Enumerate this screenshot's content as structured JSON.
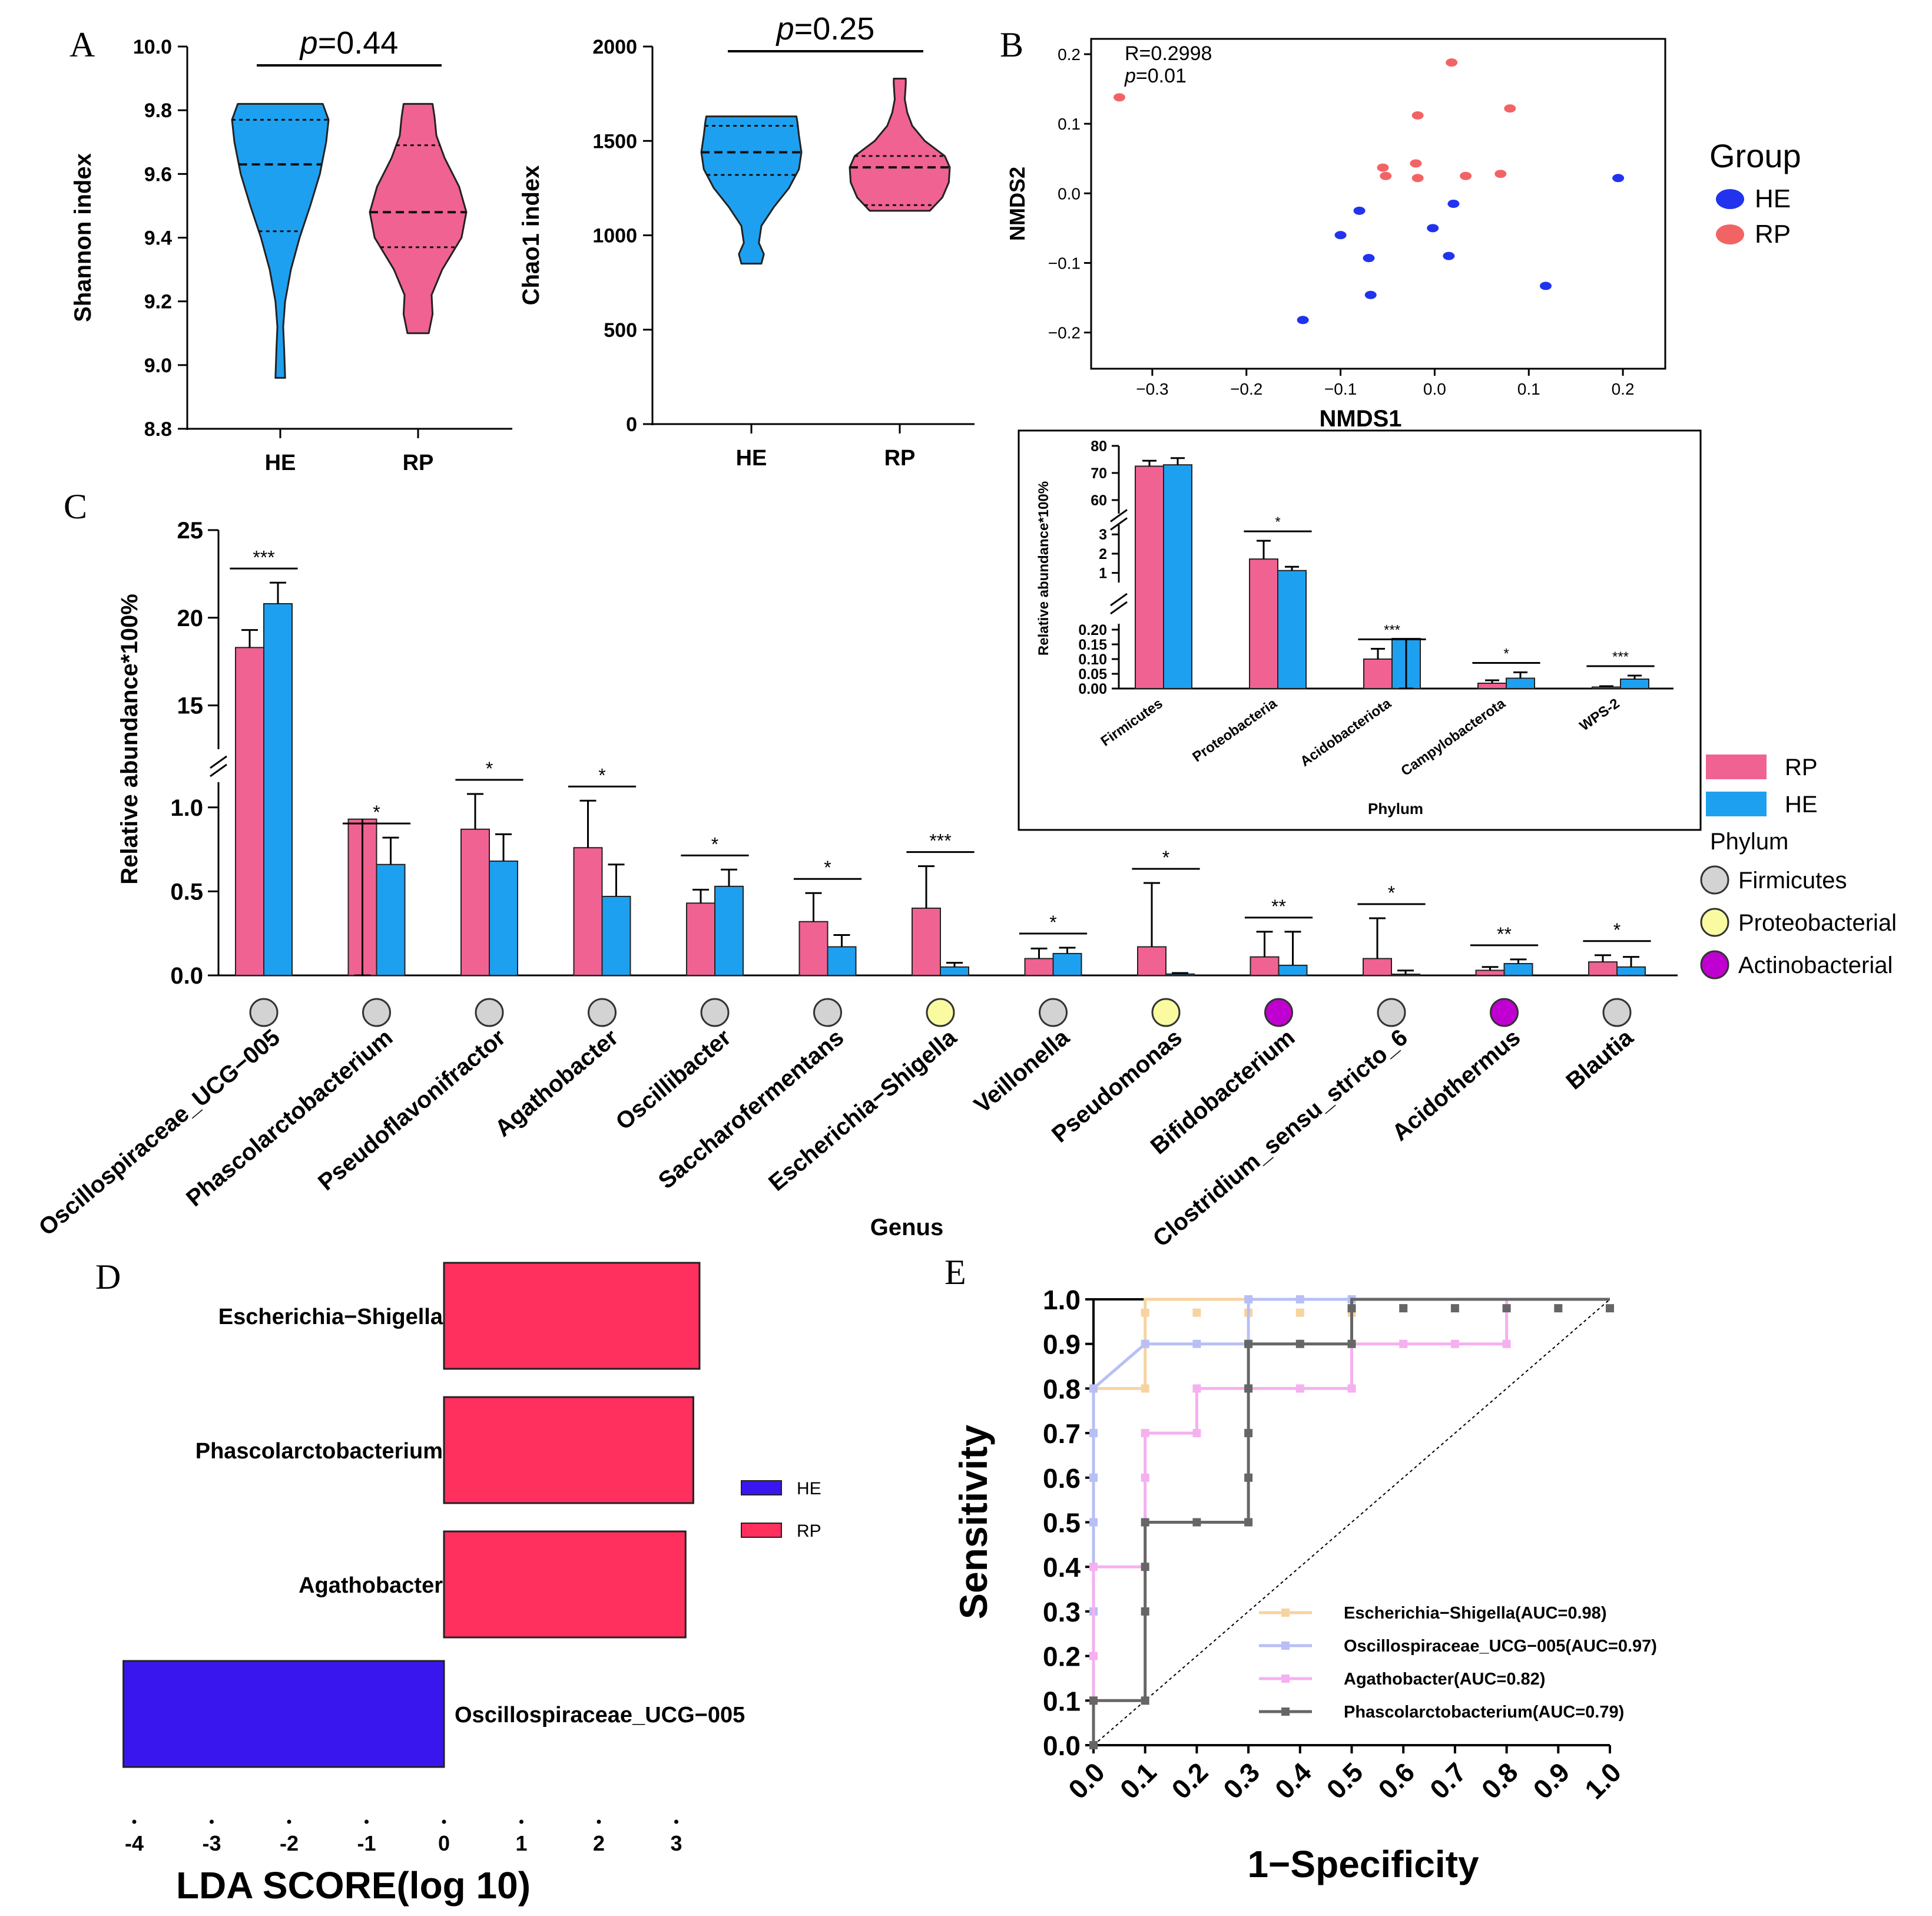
{
  "colors": {
    "rp": "#f06292",
    "he": "#1ea0f0",
    "rp_dot": "#f26464",
    "he_dot": "#2233ee",
    "lda_rp": "#ff2f5e",
    "lda_he": "#3a16ee",
    "firm": "#d3d3d3",
    "proteo": "#fafaa0",
    "actino": "#c000d0",
    "roc_esch": "#f7d3a0",
    "roc_osc": "#b8bff5",
    "roc_agath": "#f5b0f0",
    "roc_phasc": "#666666"
  },
  "panel_labels": {
    "a": "A",
    "b": "B",
    "c": "C",
    "d": "D",
    "e": "E"
  },
  "chart_data": [
    {
      "id": "A1",
      "type": "violin",
      "ylabel": "Shannon index",
      "ylim": [
        8.8,
        10.0
      ],
      "yticks": [
        "8.8",
        "9.0",
        "9.2",
        "9.4",
        "9.6",
        "9.8",
        "10.0"
      ],
      "categories": [
        "HE",
        "RP"
      ],
      "pvalue_p": "p",
      "pvalue_rest": "=0.44",
      "groups": [
        {
          "name": "HE",
          "min": 8.96,
          "max": 9.82,
          "q1": 9.42,
          "median": 9.63,
          "q3": 9.77,
          "profile": [
            [
              8.96,
              0.1
            ],
            [
              9.05,
              0.08
            ],
            [
              9.12,
              0.06
            ],
            [
              9.2,
              0.1
            ],
            [
              9.3,
              0.22
            ],
            [
              9.4,
              0.4
            ],
            [
              9.5,
              0.62
            ],
            [
              9.6,
              0.82
            ],
            [
              9.7,
              0.95
            ],
            [
              9.77,
              1.0
            ],
            [
              9.82,
              0.88
            ]
          ]
        },
        {
          "name": "RP",
          "min": 9.1,
          "max": 9.82,
          "q1": 9.37,
          "median": 9.48,
          "q3": 9.69,
          "profile": [
            [
              9.1,
              0.22
            ],
            [
              9.16,
              0.3
            ],
            [
              9.22,
              0.28
            ],
            [
              9.3,
              0.5
            ],
            [
              9.4,
              0.9
            ],
            [
              9.48,
              1.0
            ],
            [
              9.56,
              0.85
            ],
            [
              9.65,
              0.55
            ],
            [
              9.72,
              0.38
            ],
            [
              9.78,
              0.34
            ],
            [
              9.82,
              0.3
            ]
          ]
        }
      ]
    },
    {
      "id": "A2",
      "type": "violin",
      "ylabel": "Chao1 index",
      "ylim": [
        0,
        2000
      ],
      "yticks": [
        "0",
        "500",
        "1000",
        "1500",
        "2000"
      ],
      "categories": [
        "HE",
        "RP"
      ],
      "pvalue_p": "p",
      "pvalue_rest": "=0.25",
      "groups": [
        {
          "name": "HE",
          "min": 850,
          "max": 1630,
          "q1": 1320,
          "median": 1440,
          "q3": 1580,
          "profile": [
            [
              850,
              0.2
            ],
            [
              900,
              0.25
            ],
            [
              960,
              0.15
            ],
            [
              1050,
              0.2
            ],
            [
              1150,
              0.45
            ],
            [
              1250,
              0.75
            ],
            [
              1350,
              0.95
            ],
            [
              1440,
              1.0
            ],
            [
              1530,
              0.95
            ],
            [
              1600,
              0.92
            ],
            [
              1630,
              0.9
            ]
          ]
        },
        {
          "name": "RP",
          "min": 1130,
          "max": 1830,
          "q1": 1160,
          "median": 1360,
          "q3": 1420,
          "profile": [
            [
              1130,
              0.6
            ],
            [
              1200,
              0.85
            ],
            [
              1280,
              0.98
            ],
            [
              1360,
              1.0
            ],
            [
              1420,
              0.9
            ],
            [
              1500,
              0.5
            ],
            [
              1580,
              0.25
            ],
            [
              1650,
              0.15
            ],
            [
              1720,
              0.1
            ],
            [
              1800,
              0.12
            ],
            [
              1830,
              0.12
            ]
          ]
        }
      ]
    },
    {
      "id": "B",
      "type": "scatter",
      "xlabel": "NMDS1",
      "ylabel": "NMDS2",
      "xticks": [
        -0.3,
        -0.2,
        -0.1,
        0.0,
        0.1,
        0.2
      ],
      "xtick_labels": [
        "−0.3",
        "−0.2",
        "−0.1",
        "0.0",
        "0.1",
        "0.2"
      ],
      "yticks": [
        -0.2,
        -0.1,
        0.0,
        0.1,
        0.2
      ],
      "ytick_labels": [
        "−0.2",
        "−0.1",
        "0.0",
        "0.1",
        "0.2"
      ],
      "xlim": [
        -0.365,
        0.245
      ],
      "ylim": [
        -0.252,
        0.222
      ],
      "stat_r": "R=0.2998",
      "stat_p": "p",
      "stat_p_rest": "=0.01",
      "legend_title": "Group",
      "series": [
        {
          "name": "HE",
          "points": [
            [
              -0.14,
              -0.182
            ],
            [
              -0.1,
              -0.06
            ],
            [
              -0.08,
              -0.025
            ],
            [
              -0.07,
              -0.093
            ],
            [
              -0.068,
              -0.146
            ],
            [
              -0.002,
              -0.05
            ],
            [
              0.015,
              -0.09
            ],
            [
              0.02,
              -0.015
            ],
            [
              0.118,
              -0.133
            ],
            [
              0.195,
              0.022
            ]
          ]
        },
        {
          "name": "RP",
          "points": [
            [
              -0.335,
              0.138
            ],
            [
              -0.055,
              0.037
            ],
            [
              -0.052,
              0.025
            ],
            [
              -0.02,
              0.043
            ],
            [
              -0.018,
              0.022
            ],
            [
              -0.018,
              0.112
            ],
            [
              0.018,
              0.188
            ],
            [
              0.033,
              0.025
            ],
            [
              0.07,
              0.028
            ],
            [
              0.08,
              0.122
            ]
          ]
        }
      ]
    },
    {
      "id": "C-phylum",
      "type": "bar",
      "xlabel": "Phylum",
      "ylabel": "Relative abundance*100%",
      "categories": [
        "Firmicutes",
        "Proteobacteria",
        "Acidobacteriota",
        "Campylobacterota",
        "WPS-2"
      ],
      "segments": [
        {
          "range": [
            55,
            80
          ],
          "ticks": [
            "60",
            "70",
            "80"
          ]
        },
        {
          "range": [
            0.5,
            3.5
          ],
          "ticks": [
            "1",
            "2",
            "3"
          ]
        },
        {
          "range": [
            0,
            0.22
          ],
          "ticks": [
            "0.00",
            "0.05",
            "0.10",
            "0.15",
            "0.20"
          ]
        }
      ],
      "series": [
        {
          "name": "RP",
          "values": [
            72.5,
            1.72,
            0.1,
            0.018,
            0.005
          ],
          "errors": [
            2.0,
            0.95,
            0.035,
            0.01,
            0.003
          ]
        },
        {
          "name": "HE",
          "values": [
            73.0,
            1.12,
            0.17,
            0.035,
            0.032
          ],
          "errors": [
            2.5,
            0.2,
            0.05,
            0.02,
            0.012
          ]
        }
      ],
      "significance": [
        "",
        "*",
        "***",
        "*",
        "***"
      ]
    },
    {
      "id": "C-genus",
      "type": "bar",
      "xlabel": "Genus",
      "ylabel": "Relative abundance*100%",
      "categories": [
        "Oscillospiraceae_UCG−005",
        "Phascolarctobacterium",
        "Pseudoflavonifractor",
        "Agathobacter",
        "Oscillibacter",
        "Saccharofermentans",
        "Escherichia−Shigella",
        "Veillonella",
        "Pseudomonas",
        "Bifidobacterium",
        "Clostridium_sensu_stricto_6",
        "Acidothermus",
        "Blautia"
      ],
      "segments": [
        {
          "range": [
            12.5,
            25
          ],
          "ticks": [
            "15",
            "20",
            "25"
          ]
        },
        {
          "range": [
            0,
            1.15
          ],
          "ticks": [
            "0.0",
            "0.5",
            "1.0"
          ]
        }
      ],
      "series": [
        {
          "name": "RP",
          "values": [
            18.3,
            0.93,
            0.87,
            0.76,
            0.43,
            0.32,
            0.4,
            0.1,
            0.17,
            0.11,
            0.1,
            0.03,
            0.08
          ],
          "errors": [
            1.0,
            0.26,
            0.21,
            0.28,
            0.08,
            0.17,
            0.25,
            0.06,
            0.38,
            0.15,
            0.24,
            0.02,
            0.04
          ]
        },
        {
          "name": "HE",
          "values": [
            20.8,
            0.66,
            0.68,
            0.47,
            0.53,
            0.17,
            0.05,
            0.13,
            0.008,
            0.06,
            0.007,
            0.07,
            0.05
          ],
          "errors": [
            1.2,
            0.16,
            0.16,
            0.19,
            0.1,
            0.07,
            0.025,
            0.035,
            0.006,
            0.2,
            0.022,
            0.025,
            0.06
          ]
        }
      ],
      "significance": [
        "***",
        "*",
        "*",
        "*",
        "*",
        "*",
        "***",
        "*",
        "*",
        "**",
        "*",
        "**",
        "*"
      ],
      "phylum": [
        "firm",
        "firm",
        "firm",
        "firm",
        "firm",
        "firm",
        "proteo",
        "firm",
        "proteo",
        "actino",
        "firm",
        "actino",
        "firm"
      ],
      "legend_title": "Phylum",
      "phylum_names": [
        "Firmicutes",
        "Proteobacterial",
        "Actinobacterial"
      ]
    },
    {
      "id": "D",
      "type": "bar",
      "orientation": "horizontal",
      "xlabel": "LDA SCORE(log 10)",
      "xticks": [
        "-4",
        "-3",
        "-2",
        "-1",
        "0",
        "1",
        "2",
        "3"
      ],
      "categories": [
        "Escherichia−Shigella",
        "Phascolarctobacterium",
        "Agathobacter",
        "Oscillospiraceae_UCG−005"
      ],
      "values": [
        3.3,
        3.22,
        3.12,
        -4.14
      ],
      "groups": [
        "RP",
        "RP",
        "RP",
        "HE"
      ],
      "legend": [
        "HE",
        "RP"
      ]
    },
    {
      "id": "E",
      "type": "line",
      "xlabel": "1−Specificity",
      "ylabel": "Sensitivity",
      "xlim": [
        0,
        1
      ],
      "ylim": [
        0,
        1
      ],
      "ticks": [
        "0.0",
        "0.1",
        "0.2",
        "0.3",
        "0.4",
        "0.5",
        "0.6",
        "0.7",
        "0.8",
        "0.9",
        "1.0"
      ],
      "series": [
        {
          "name": "Escherichia−Shigella(AUC=0.98)",
          "color": "roc_esch",
          "points": [
            [
              0,
              0
            ],
            [
              0,
              0.8
            ],
            [
              0.1,
              0.8
            ],
            [
              0.1,
              1.0
            ],
            [
              1.0,
              1.0
            ]
          ],
          "markers": [
            [
              0,
              0.6
            ],
            [
              0,
              0.7
            ],
            [
              0,
              0.8
            ],
            [
              0.1,
              0.8
            ],
            [
              0.1,
              0.97
            ],
            [
              0.2,
              0.97
            ],
            [
              0.3,
              0.97
            ],
            [
              0.4,
              0.97
            ],
            [
              0.5,
              0.97
            ]
          ]
        },
        {
          "name": "Oscillospiraceae_UCG−005(AUC=0.97)",
          "color": "roc_osc",
          "points": [
            [
              0,
              0
            ],
            [
              0,
              0.8
            ],
            [
              0.1,
              0.9
            ],
            [
              0.3,
              0.9
            ],
            [
              0.3,
              1.0
            ],
            [
              1.0,
              1.0
            ]
          ],
          "markers": [
            [
              0,
              0.3
            ],
            [
              0,
              0.5
            ],
            [
              0,
              0.6
            ],
            [
              0,
              0.7
            ],
            [
              0,
              0.8
            ],
            [
              0.1,
              0.9
            ],
            [
              0.2,
              0.9
            ],
            [
              0.3,
              0.9
            ],
            [
              0.3,
              1.0
            ],
            [
              0.4,
              1.0
            ],
            [
              0.5,
              1.0
            ]
          ]
        },
        {
          "name": "Agathobacter(AUC=0.82)",
          "color": "roc_agath",
          "points": [
            [
              0,
              0
            ],
            [
              0,
              0.4
            ],
            [
              0.1,
              0.4
            ],
            [
              0.1,
              0.7
            ],
            [
              0.2,
              0.7
            ],
            [
              0.2,
              0.8
            ],
            [
              0.5,
              0.8
            ],
            [
              0.5,
              0.9
            ],
            [
              0.8,
              0.9
            ],
            [
              0.8,
              1.0
            ],
            [
              1.0,
              1.0
            ]
          ],
          "markers": [
            [
              0,
              0.1
            ],
            [
              0,
              0.2
            ],
            [
              0,
              0.4
            ],
            [
              0.1,
              0.6
            ],
            [
              0.1,
              0.7
            ],
            [
              0.2,
              0.7
            ],
            [
              0.2,
              0.8
            ],
            [
              0.3,
              0.8
            ],
            [
              0.4,
              0.8
            ],
            [
              0.5,
              0.8
            ],
            [
              0.5,
              0.9
            ],
            [
              0.6,
              0.9
            ],
            [
              0.7,
              0.9
            ],
            [
              0.8,
              0.9
            ]
          ]
        },
        {
          "name": "Phascolarctobacterium(AUC=0.79)",
          "color": "roc_phasc",
          "points": [
            [
              0,
              0
            ],
            [
              0,
              0.1
            ],
            [
              0.1,
              0.1
            ],
            [
              0.1,
              0.5
            ],
            [
              0.3,
              0.5
            ],
            [
              0.3,
              0.9
            ],
            [
              0.5,
              0.9
            ],
            [
              0.5,
              1.0
            ],
            [
              1.0,
              1.0
            ]
          ],
          "markers": [
            [
              0,
              0
            ],
            [
              0,
              0.1
            ],
            [
              0.1,
              0.1
            ],
            [
              0.1,
              0.3
            ],
            [
              0.1,
              0.4
            ],
            [
              0.1,
              0.5
            ],
            [
              0.2,
              0.5
            ],
            [
              0.3,
              0.5
            ],
            [
              0.3,
              0.6
            ],
            [
              0.3,
              0.7
            ],
            [
              0.3,
              0.8
            ],
            [
              0.3,
              0.9
            ],
            [
              0.4,
              0.9
            ],
            [
              0.5,
              0.9
            ],
            [
              0.5,
              0.98
            ],
            [
              0.6,
              0.98
            ],
            [
              0.7,
              0.98
            ],
            [
              0.8,
              0.98
            ],
            [
              0.9,
              0.98
            ],
            [
              1.0,
              0.98
            ]
          ]
        }
      ]
    }
  ]
}
